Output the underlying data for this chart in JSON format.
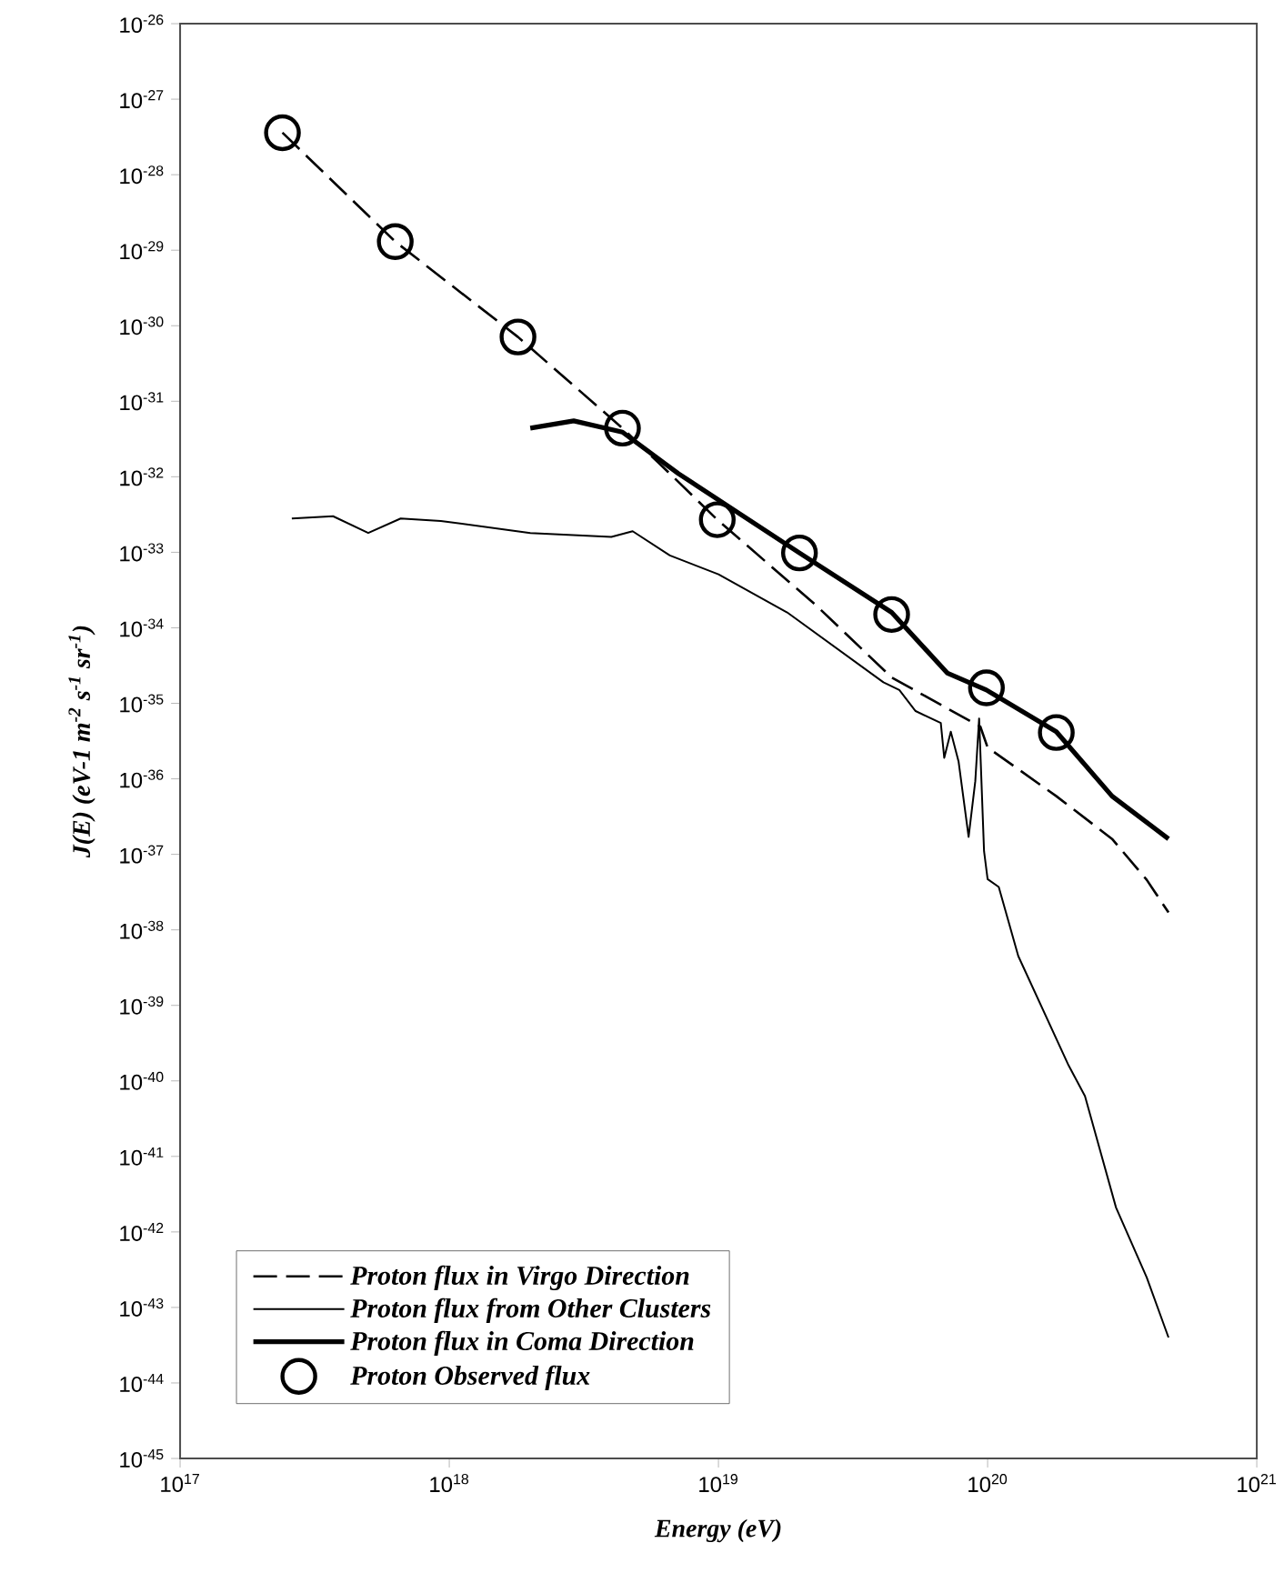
{
  "chart_data": {
    "type": "line",
    "xlabel": "Energy (eV)",
    "ylabel": "J(E) (eV-1  m$^{-2}$ s$^{-1}$ sr$^{-1}$)",
    "log": "xy",
    "grid": false,
    "legend": "bottom left",
    "xlim": [
      1e+17,
      1e+21
    ],
    "ylim": [
      1e-45,
      1e-26
    ],
    "xticks": [
      {
        "value": 1e+17,
        "label": "10$^{17}$"
      },
      {
        "value": 1e+18,
        "label": "10$^{18}$"
      },
      {
        "value": 1e+19,
        "label": "10$^{19}$"
      },
      {
        "value": 1e+20,
        "label": "10$^{20}$"
      },
      {
        "value": 1e+21,
        "label": "10$^{21}$"
      }
    ],
    "yticks": [
      {
        "value": 1e-26,
        "label": "10$^{-26}$"
      },
      {
        "value": 1e-27,
        "label": "10$^{-27}$"
      },
      {
        "value": 1e-28,
        "label": "10$^{-28}$"
      },
      {
        "value": 1e-29,
        "label": "10$^{-29}$"
      },
      {
        "value": 1e-30,
        "label": "10$^{-30}$"
      },
      {
        "value": 1e-31,
        "label": "10$^{-31}$"
      },
      {
        "value": 1e-32,
        "label": "10$^{-32}$"
      },
      {
        "value": 1e-33,
        "label": "10$^{-33}$"
      },
      {
        "value": 1e-34,
        "label": "10$^{-34}$"
      },
      {
        "value": 1e-35,
        "label": "10$^{-35}$"
      },
      {
        "value": 1e-36,
        "label": "10$^{-36}$"
      },
      {
        "value": 1e-37,
        "label": "10$^{-37}$"
      },
      {
        "value": 1e-38,
        "label": "10$^{-38}$"
      },
      {
        "value": 1e-39,
        "label": "10$^{-39}$"
      },
      {
        "value": 1e-40,
        "label": "10$^{-40}$"
      },
      {
        "value": 1e-41,
        "label": "10$^{-41}$"
      },
      {
        "value": 1e-42,
        "label": "10$^{-42}$"
      },
      {
        "value": 1e-43,
        "label": "10$^{-43}$"
      },
      {
        "value": 1e-44,
        "label": "10$^{-44}$"
      },
      {
        "value": 1e-45,
        "label": "10$^{-45}$"
      }
    ],
    "series": [
      {
        "name": "Proton flux in Virgo Direction",
        "type": "line",
        "line_style": "dashed",
        "color": "#000000",
        "x": [
          2.4e+17,
          6.3e+17,
          1.8e+18,
          4.4e+18,
          6.6e+18,
          9.9e+18,
          2.3e+19,
          4.4e+19,
          9.4e+19,
          1e+20,
          1.8e+20,
          2.9e+20,
          3.9e+20,
          4.7e+20
        ],
        "values": [
          3.6e-28,
          1.3e-29,
          7.1e-31,
          4.4e-32,
          1.1e-32,
          2.7e-33,
          2e-34,
          2.2e-35,
          4.9e-36,
          2.6e-36,
          5.9e-37,
          1.6e-37,
          4.6e-38,
          1.7e-38
        ]
      },
      {
        "name": "Proton flux from Other Clusters",
        "type": "line",
        "line_style": "solid",
        "color": "#000000",
        "x": [
          2.6e+17,
          3.7e+17,
          5e+17,
          6.6e+17,
          9.3e+17,
          2e+18,
          4e+18,
          4.8e+18,
          6.6e+18,
          1e+19,
          1.8e+19,
          4.1e+19,
          4.7e+19,
          5.4e+19,
          6.7e+19,
          6.9e+19,
          7.3e+19,
          7.8e+19,
          8.5e+19,
          9e+19,
          9.3e+19,
          9.7e+19,
          1e+20,
          1.1e+20,
          1.3e+20,
          2e+20,
          2.3e+20,
          3e+20,
          3.9e+20,
          4.7e+20
        ],
        "values": [
          2.8e-33,
          3e-33,
          1.8e-33,
          2.8e-33,
          2.6e-33,
          1.8e-33,
          1.6e-33,
          1.9e-33,
          9.1e-34,
          5.1e-34,
          1.6e-34,
          1.9e-35,
          1.5e-35,
          7.9e-36,
          5.5e-36,
          1.9e-36,
          4.2e-36,
          1.7e-36,
          1.7e-37,
          9.3e-37,
          6.3e-36,
          1.1e-37,
          4.7e-38,
          3.7e-38,
          4.5e-39,
          1.6e-40,
          6.3e-41,
          2.1e-42,
          2.5e-43,
          4e-44
        ]
      },
      {
        "name": "Proton flux in Coma Direction",
        "type": "line",
        "line_style": "solid",
        "color": "#000000",
        "x": [
          2e+18,
          2.9e+18,
          4.4e+18,
          7.1e+18,
          2e+19,
          4.4e+19,
          7.1e+19,
          9.9e+19,
          1.8e+20,
          2.9e+20,
          4.7e+20
        ],
        "values": [
          4.4e-32,
          5.5e-32,
          3.9e-32,
          1.1e-32,
          9.8e-34,
          1.6e-34,
          2.5e-35,
          1.5e-35,
          4.2e-36,
          5.9e-37,
          1.6e-37
        ]
      },
      {
        "name": "Proton Observed flux",
        "type": "scatter",
        "marker": "circle",
        "color": "#000000",
        "x": [
          2.4e+17,
          6.3e+17,
          1.8e+18,
          4.4e+18,
          9.9e+18,
          2e+19,
          4.4e+19,
          9.9e+19,
          1.8e+20
        ],
        "values": [
          3.6e-28,
          1.3e-29,
          7.1e-31,
          4.4e-32,
          2.7e-33,
          9.8e-34,
          1.5e-34,
          1.6e-35,
          4.1e-36
        ]
      }
    ]
  }
}
